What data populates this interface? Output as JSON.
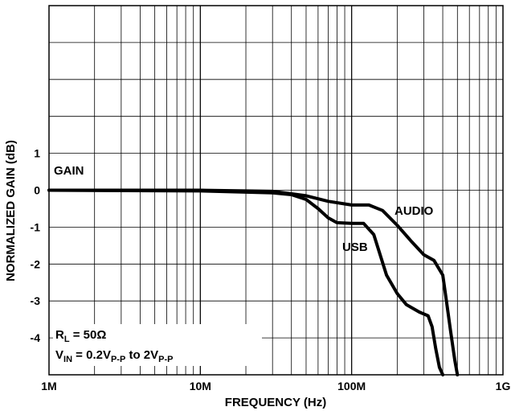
{
  "chart_data": {
    "type": "line",
    "xlabel": "FREQUENCY (Hz)",
    "ylabel": "NORMALIZED GAIN (dB)",
    "x_scale": "log",
    "xlim": [
      "1M",
      "1G"
    ],
    "ylim": [
      -5,
      5
    ],
    "x_tick_labels": [
      "1M",
      "10M",
      "100M",
      "1G"
    ],
    "y_tick_labels": [
      "1",
      "0",
      "-1",
      "-2",
      "-3",
      "-4"
    ],
    "y_tick_values": [
      1,
      0,
      -1,
      -2,
      -3,
      -4
    ],
    "grid": true,
    "annotations": {
      "gain": "GAIN",
      "rl": "R",
      "rl_sub": "L",
      "rl_val": " = 50Ω",
      "vin": "V",
      "vin_sub": "IN",
      "vin_eq": " = 0.2V",
      "vin_pp1": "P-P",
      "vin_to": " to 2V",
      "vin_pp2": "P-P"
    },
    "series": [
      {
        "name": "AUDIO",
        "x": [
          "1M",
          "10M",
          "30M",
          "50M",
          "70M",
          "100M",
          "130M",
          "160M",
          "200M",
          "250M",
          "300M",
          "350M",
          "400M",
          "420M",
          "450M",
          "480M",
          "500M"
        ],
        "y": [
          0,
          0,
          -0.03,
          -0.15,
          -0.3,
          -0.4,
          -0.4,
          -0.55,
          -0.95,
          -1.4,
          -1.75,
          -1.9,
          -2.3,
          -2.9,
          -3.8,
          -4.6,
          -5.0
        ]
      },
      {
        "name": "USB",
        "x": [
          "1M",
          "10M",
          "30M",
          "40M",
          "50M",
          "60M",
          "70M",
          "80M",
          "100M",
          "120M",
          "140M",
          "170M",
          "200M",
          "230M",
          "280M",
          "320M",
          "340M",
          "360M",
          "380M",
          "400M"
        ],
        "y": [
          0,
          -0.02,
          -0.07,
          -0.12,
          -0.25,
          -0.5,
          -0.75,
          -0.88,
          -0.9,
          -0.9,
          -1.2,
          -2.3,
          -2.8,
          -3.1,
          -3.3,
          -3.4,
          -3.7,
          -4.3,
          -4.8,
          -5.0
        ]
      }
    ]
  }
}
